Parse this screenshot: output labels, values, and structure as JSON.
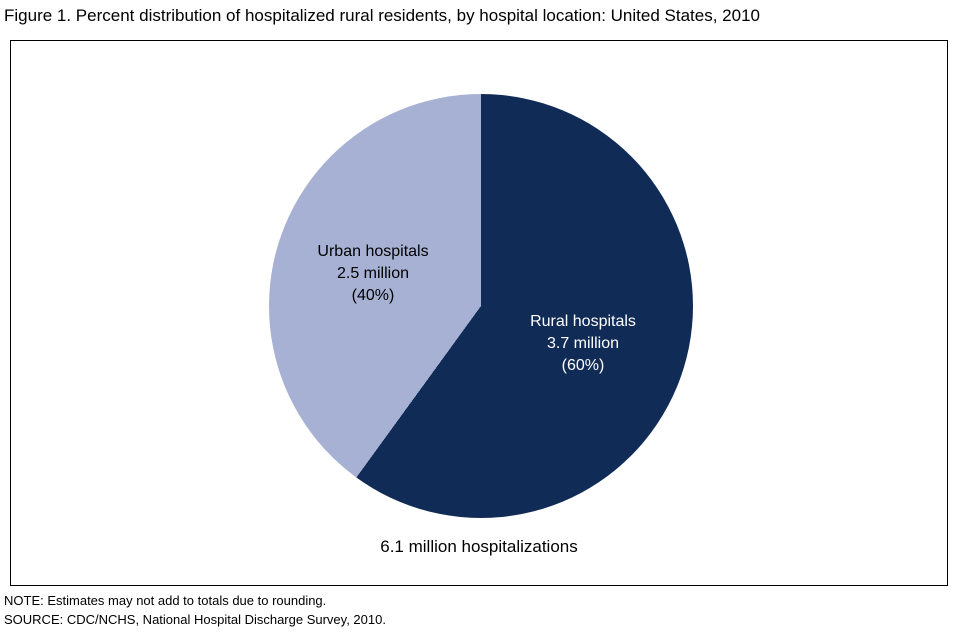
{
  "figure": {
    "title": "Figure 1. Percent distribution of hospitalized rural residents, by hospital location: United States, 2010",
    "caption": "6.1 million hospitalizations",
    "notes": [
      "NOTE: Estimates may not add to totals due to rounding.",
      "SOURCE: CDC/NCHS, National Hospital Discharge Survey, 2010."
    ]
  },
  "chart_data": {
    "type": "pie",
    "title": "Percent distribution of hospitalized rural residents, by hospital location: United States, 2010",
    "start_angle_deg": 0,
    "direction": "clockwise",
    "slices": [
      {
        "label": "Rural hospitals",
        "value_pct": 60,
        "value_label": "3.7 million",
        "pct_label": "(60%)",
        "value_millions": 3.7,
        "color": "#112b57",
        "text_color": "#ffffff"
      },
      {
        "label": "Urban hospitals",
        "value_pct": 40,
        "value_label": "2.5 million",
        "pct_label": "(40%)",
        "value_millions": 2.5,
        "color": "#a6b1d4",
        "text_color": "#000000"
      }
    ],
    "total_label": "6.1 million hospitalizations",
    "total_value_millions": 6.1,
    "legend": "none",
    "labels_inside_slices": true
  }
}
